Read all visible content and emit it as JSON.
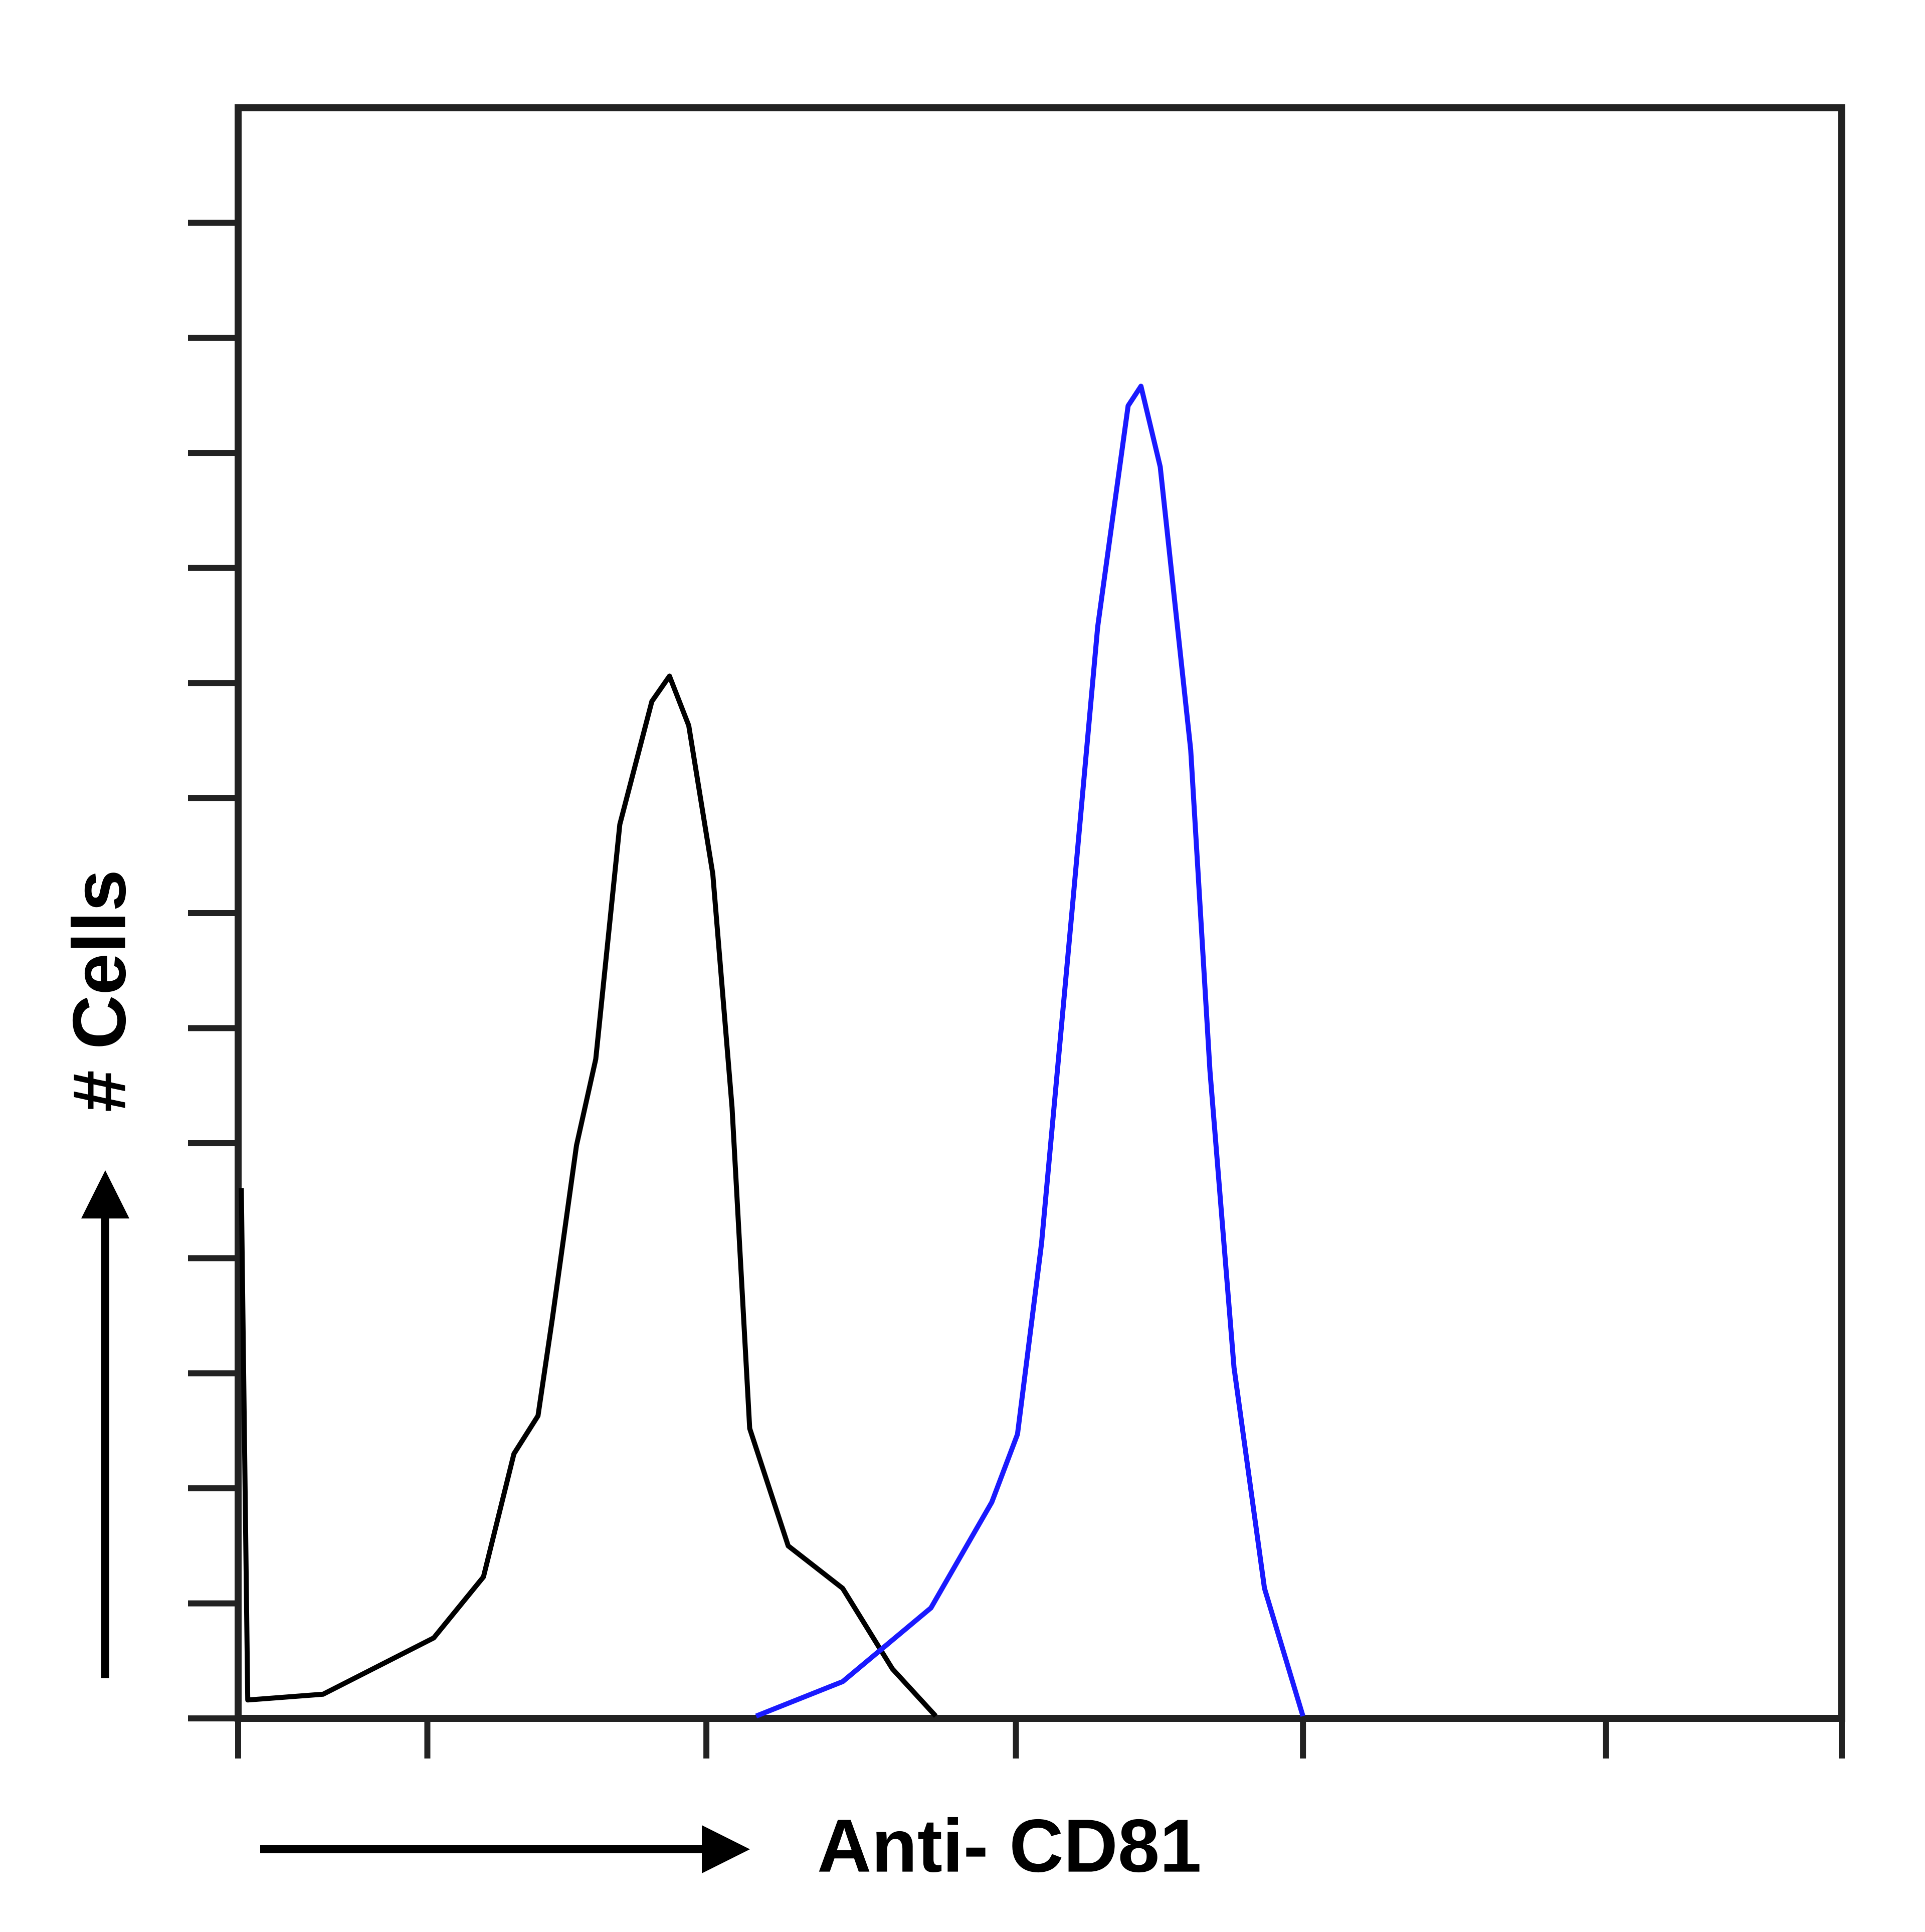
{
  "chart_data": {
    "type": "line",
    "xlabel": "Anti- CD81",
    "ylabel": "# Cells",
    "xlim": [
      0,
      100
    ],
    "ylim": [
      0,
      14
    ],
    "xticks": [
      0,
      11.8,
      29.2,
      48.5,
      66.4,
      85.3,
      100
    ],
    "yticks": [
      0,
      1,
      2,
      3,
      4,
      5,
      6,
      7,
      8,
      9,
      10,
      11,
      12,
      13
    ],
    "series": [
      {
        "color": "#000000",
        "x": [
          0.2,
          0.6,
          5.3,
          8.4,
          12.2,
          15.3,
          17.2,
          18.7,
          19.6,
          21.1,
          22.3,
          23.8,
          25.8,
          26.9,
          28.1,
          29.6,
          30.8,
          31.9,
          34.3,
          37.7,
          40.8,
          43.5
        ],
        "values": [
          4.61,
          0.16,
          0.21,
          0.43,
          0.7,
          1.23,
          2.3,
          2.63,
          3.48,
          4.98,
          5.73,
          7.77,
          8.84,
          9.06,
          8.63,
          7.34,
          5.31,
          2.52,
          1.5,
          1.13,
          0.43,
          0.02
        ]
      },
      {
        "color": "#1a1aff",
        "x": [
          32.3,
          37.7,
          43.2,
          47.0,
          48.6,
          50.1,
          52.0,
          53.6,
          55.5,
          56.3,
          57.5,
          59.4,
          60.6,
          62.1,
          64.0,
          66.4
        ],
        "values": [
          0.02,
          0.32,
          0.96,
          1.88,
          2.47,
          4.13,
          7.02,
          9.49,
          11.41,
          11.58,
          10.88,
          8.42,
          5.63,
          3.05,
          1.13,
          0.02
        ]
      }
    ]
  }
}
